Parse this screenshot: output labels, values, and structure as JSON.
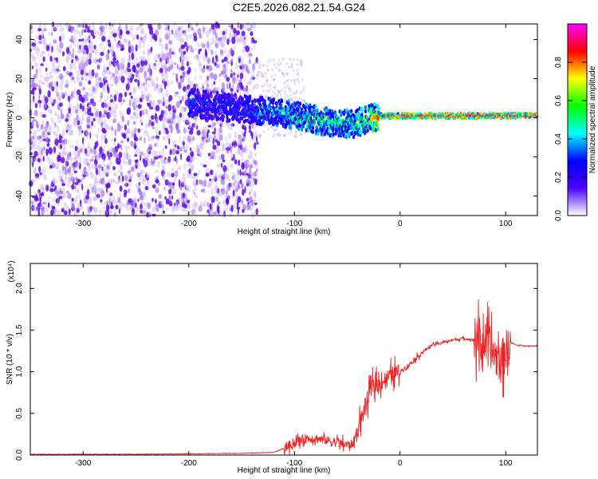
{
  "title": "C2E5.2026.082.21.54.G24",
  "chart_data": [
    {
      "type": "heatmap",
      "title": "C2E5.2026.082.21.54.G24",
      "xlabel": "Height of straight line (km)",
      "ylabel": "Frequency (Hz)",
      "xlim": [
        -350,
        130
      ],
      "ylim": [
        -50,
        48
      ],
      "xticks": [
        -300,
        -200,
        -100,
        0,
        100
      ],
      "yticks": [
        -40,
        -20,
        0,
        20,
        40
      ],
      "colorbar": {
        "label": "Normalized spectral amplitude",
        "range": [
          0.0,
          1.0
        ],
        "ticks": [
          0.0,
          0.2,
          0.4,
          0.6,
          0.8
        ],
        "tick_labels": [
          "0.0",
          "0.2",
          "0.4",
          "0.6",
          "0.8"
        ],
        "colormap": [
          "#ffffff",
          "#4b00ff",
          "#0000ff",
          "#00ffff",
          "#00ff00",
          "#ffff00",
          "#ff0000",
          "#ff00ff"
        ]
      },
      "ridge": {
        "x": [
          -200,
          -180,
          -160,
          -140,
          -120,
          -100,
          -80,
          -60,
          -45,
          -35,
          -20,
          0,
          20,
          50,
          80,
          100,
          130
        ],
        "frequency": [
          8,
          6,
          5,
          4,
          3,
          1,
          -1,
          -3,
          -3,
          -2,
          1,
          1,
          1,
          1,
          1,
          1,
          1
        ],
        "amplitude": [
          0.35,
          0.3,
          0.3,
          0.35,
          0.45,
          0.5,
          0.55,
          0.55,
          0.5,
          0.6,
          0.85,
          0.95,
          0.95,
          0.95,
          0.95,
          0.95,
          0.95
        ]
      },
      "noise_region": {
        "x_range": [
          -350,
          -135
        ],
        "amplitude": 0.12
      },
      "grid": false,
      "legend": "none"
    },
    {
      "type": "line",
      "xlabel": "Height of straight line (km)",
      "ylabel": "SNR (10 * v/v)",
      "y_multiplier": "(x10⁴)",
      "xlim": [
        -350,
        130
      ],
      "ylim": [
        0,
        2.3
      ],
      "xticks": [
        -300,
        -200,
        -100,
        0,
        100
      ],
      "yticks": [
        0.0,
        0.5,
        1.0,
        1.5,
        2.0
      ],
      "ytick_labels": [
        "0.0",
        "0.5",
        "1.0",
        "1.5",
        "2.0"
      ],
      "series": [
        {
          "color": "#ff0000",
          "x": [
            -350,
            -300,
            -250,
            -200,
            -150,
            -120,
            -110,
            -100,
            -90,
            -80,
            -70,
            -60,
            -50,
            -45,
            -40,
            -35,
            -30,
            -25,
            -20,
            -15,
            -10,
            -5,
            0,
            10,
            20,
            30,
            40,
            50,
            60,
            70,
            75,
            80,
            85,
            90,
            95,
            100,
            105,
            110,
            120,
            130
          ],
          "y": [
            0.01,
            0.01,
            0.01,
            0.015,
            0.02,
            0.03,
            0.08,
            0.15,
            0.2,
            0.2,
            0.18,
            0.15,
            0.12,
            0.13,
            0.3,
            0.5,
            0.7,
            0.85,
            0.85,
            0.9,
            0.95,
            0.98,
            1.0,
            1.1,
            1.22,
            1.32,
            1.35,
            1.38,
            1.4,
            1.38,
            1.35,
            1.35,
            1.3,
            1.2,
            1.1,
            1.25,
            1.35,
            1.32,
            1.31,
            1.31
          ]
        }
      ],
      "grid": false,
      "legend": "none"
    }
  ]
}
